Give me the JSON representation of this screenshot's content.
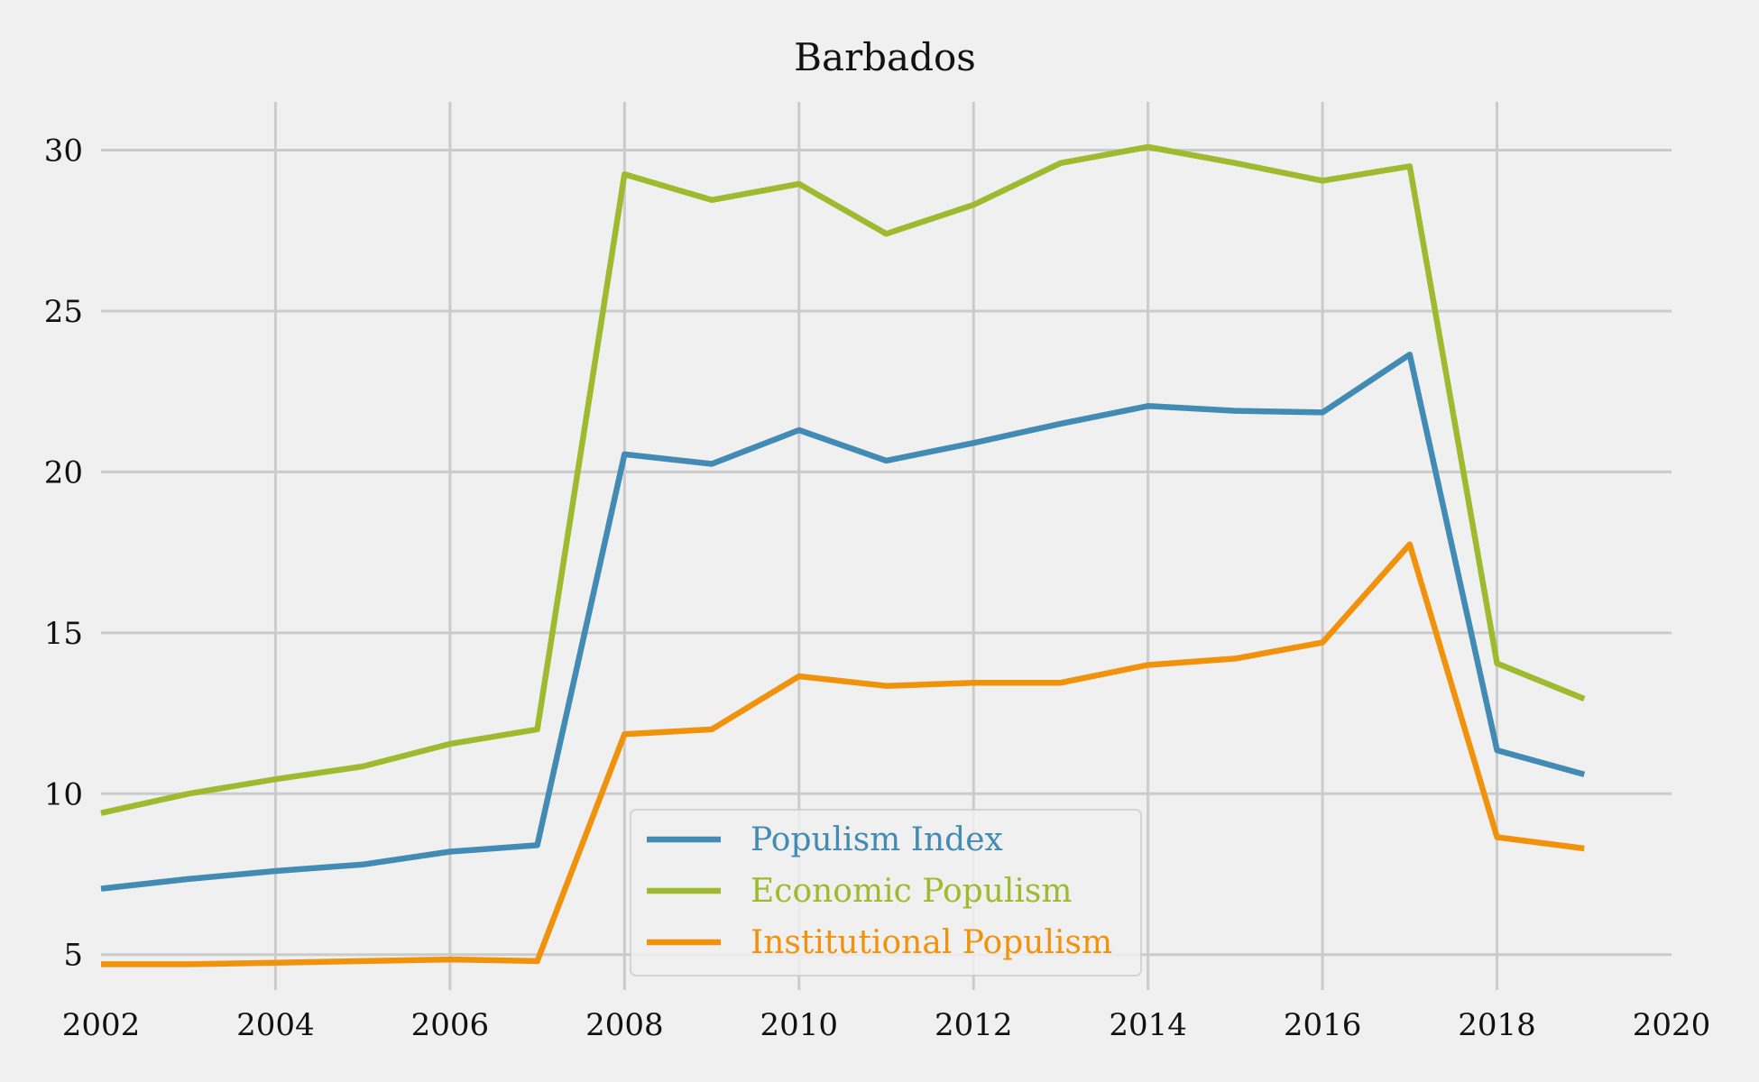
{
  "chart_data": {
    "type": "line",
    "title": "Barbados",
    "xlabel": "",
    "ylabel": "",
    "xlim": [
      2002,
      2020
    ],
    "ylim": [
      3.9,
      31.5
    ],
    "xticks": [
      2002,
      2004,
      2006,
      2008,
      2010,
      2012,
      2014,
      2016,
      2018,
      2020
    ],
    "yticks": [
      5,
      10,
      15,
      20,
      25,
      30
    ],
    "grid": true,
    "legend_position": "bottom-center",
    "x": [
      2002,
      2003,
      2004,
      2005,
      2006,
      2007,
      2008,
      2009,
      2010,
      2011,
      2012,
      2013,
      2014,
      2015,
      2016,
      2017,
      2018,
      2019
    ],
    "series": [
      {
        "name": "Populism Index",
        "color": "#428bb4",
        "values": [
          7.05,
          7.35,
          7.6,
          7.8,
          8.2,
          8.4,
          20.55,
          20.25,
          21.3,
          20.35,
          20.9,
          21.5,
          22.05,
          21.9,
          21.85,
          23.65,
          11.35,
          10.6
        ]
      },
      {
        "name": "Economic Populism",
        "color": "#a0b92e",
        "values": [
          9.4,
          10.0,
          10.45,
          10.85,
          11.55,
          12.0,
          29.25,
          28.45,
          28.95,
          27.4,
          28.3,
          29.6,
          30.1,
          29.6,
          29.05,
          29.5,
          14.05,
          12.95
        ]
      },
      {
        "name": "Institutional Populism",
        "color": "#f0920c",
        "values": [
          4.7,
          4.7,
          4.75,
          4.8,
          4.85,
          4.8,
          11.85,
          12.0,
          13.65,
          13.35,
          13.45,
          13.45,
          14.0,
          14.2,
          14.7,
          17.75,
          8.65,
          8.3
        ]
      }
    ]
  }
}
